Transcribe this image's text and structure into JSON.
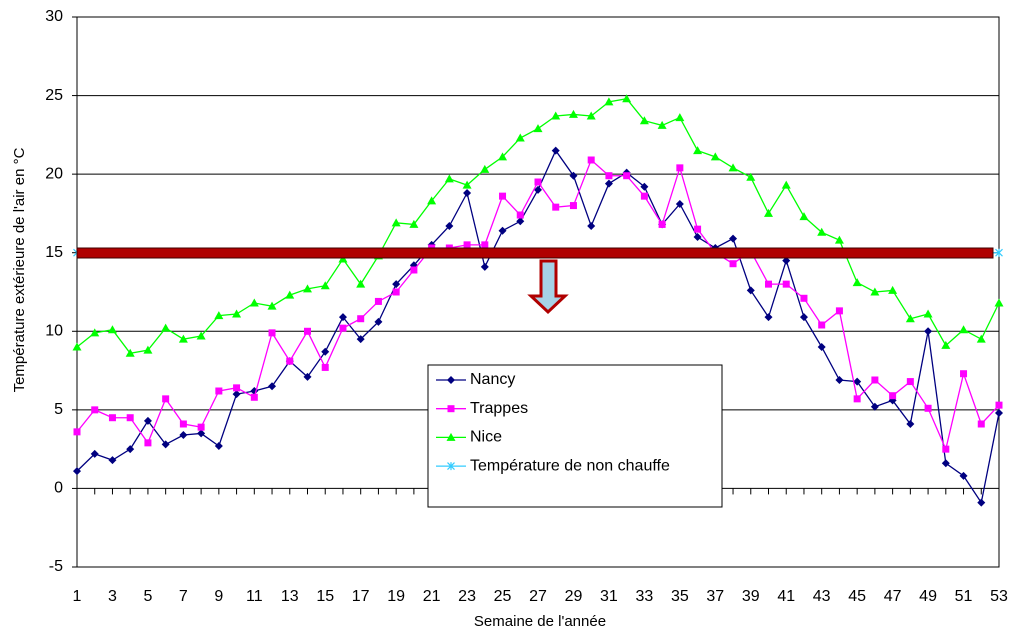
{
  "chart_data": {
    "type": "line",
    "xlabel": "Semaine de l'année",
    "ylabel": "Température extérieure de l'air en °C",
    "x": [
      1,
      2,
      3,
      4,
      5,
      6,
      7,
      8,
      9,
      10,
      11,
      12,
      13,
      14,
      15,
      16,
      17,
      18,
      19,
      20,
      21,
      22,
      23,
      24,
      25,
      26,
      27,
      28,
      29,
      30,
      31,
      32,
      33,
      34,
      35,
      36,
      37,
      38,
      39,
      40,
      41,
      42,
      43,
      44,
      45,
      46,
      47,
      48,
      49,
      50,
      51,
      52,
      53
    ],
    "xlim": [
      1,
      53
    ],
    "xticks": [
      1,
      3,
      5,
      7,
      9,
      11,
      13,
      15,
      17,
      19,
      21,
      23,
      25,
      27,
      29,
      31,
      33,
      35,
      37,
      39,
      41,
      43,
      45,
      47,
      49,
      51,
      53
    ],
    "ylim": [
      -5,
      30
    ],
    "yticks": [
      -5,
      0,
      5,
      10,
      15,
      20,
      25,
      30
    ],
    "grid": true,
    "series": [
      {
        "name": "Nancy",
        "color": "#000080",
        "marker": "diamond",
        "values": [
          1.1,
          2.2,
          1.8,
          2.5,
          4.3,
          2.8,
          3.4,
          3.5,
          2.7,
          6.0,
          6.2,
          6.5,
          8.1,
          7.1,
          8.7,
          10.9,
          9.5,
          10.6,
          13.0,
          14.2,
          15.5,
          16.7,
          18.8,
          14.1,
          16.4,
          17.0,
          19.0,
          21.5,
          19.9,
          16.7,
          19.4,
          20.1,
          19.2,
          16.8,
          18.1,
          16.0,
          15.3,
          15.9,
          12.6,
          10.9,
          14.5,
          10.9,
          9.0,
          6.9,
          6.8,
          5.2,
          5.6,
          4.1,
          10.0,
          1.6,
          0.8,
          -0.9,
          4.8
        ]
      },
      {
        "name": "Trappes",
        "color": "#ff00ff",
        "marker": "square",
        "values": [
          3.6,
          5.0,
          4.5,
          4.5,
          2.9,
          5.7,
          4.1,
          3.9,
          6.2,
          6.4,
          5.8,
          9.9,
          8.1,
          10.0,
          7.7,
          10.2,
          10.8,
          11.9,
          12.5,
          13.9,
          15.3,
          15.3,
          15.5,
          15.5,
          18.6,
          17.4,
          19.5,
          17.9,
          18.0,
          20.9,
          19.9,
          19.9,
          18.6,
          16.8,
          20.4,
          16.5,
          15.0,
          14.3,
          15.1,
          13.0,
          13.0,
          12.1,
          10.4,
          11.3,
          5.7,
          6.9,
          5.9,
          6.8,
          5.1,
          2.5,
          7.3,
          4.1,
          5.3
        ]
      },
      {
        "name": "Nice",
        "color": "#00ff00",
        "marker": "triangle",
        "values": [
          9.0,
          9.9,
          10.1,
          8.6,
          8.8,
          10.2,
          9.5,
          9.7,
          11.0,
          11.1,
          11.8,
          11.6,
          12.3,
          12.7,
          12.9,
          14.6,
          13.0,
          14.8,
          16.9,
          16.8,
          18.3,
          19.7,
          19.3,
          20.3,
          21.1,
          22.3,
          22.9,
          23.7,
          23.8,
          23.7,
          24.6,
          24.8,
          23.4,
          23.1,
          23.6,
          21.5,
          21.1,
          20.4,
          19.8,
          17.5,
          19.3,
          17.3,
          16.3,
          15.8,
          13.1,
          12.5,
          12.6,
          10.8,
          11.1,
          9.1,
          10.1,
          9.5,
          11.8
        ]
      },
      {
        "name": "Température de non chauffe",
        "color": "#33ccff",
        "marker": "x",
        "values": [
          15,
          15,
          15,
          15,
          15,
          15,
          15,
          15,
          15,
          15,
          15,
          15,
          15,
          15,
          15,
          15,
          15,
          15,
          15,
          15,
          15,
          15,
          15,
          15,
          15,
          15,
          15,
          15,
          15,
          15,
          15,
          15,
          15,
          15,
          15,
          15,
          15,
          15,
          15,
          15,
          15,
          15,
          15,
          15,
          15,
          15,
          15,
          15,
          15,
          15,
          15,
          15,
          15
        ]
      }
    ]
  }
}
